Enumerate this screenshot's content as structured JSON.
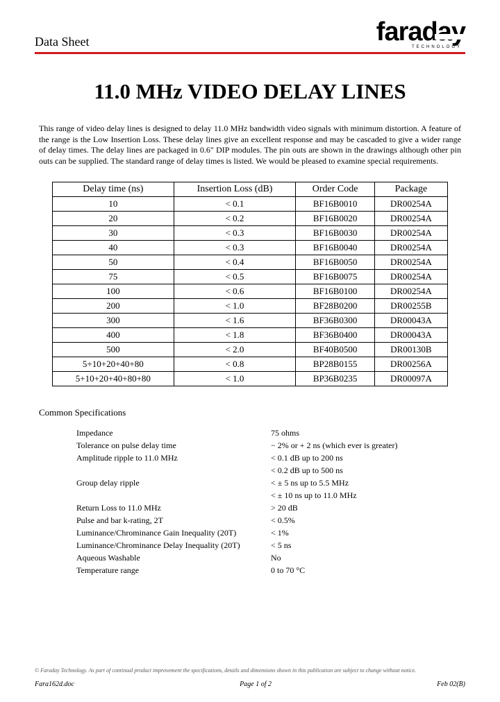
{
  "header": {
    "label": "Data Sheet",
    "logo_main": "faraday",
    "logo_sub": "TECHNOLOGY"
  },
  "title": "11.0 MHz VIDEO DELAY LINES",
  "intro": "This range of video delay lines is designed to delay 11.0 MHz bandwidth video signals with minimum distortion. A feature of the range is the Low Insertion Loss. These delay lines give an excellent response and may be cascaded to give a wider range of delay times. The delay lines are packaged in 0.6\" DIP modules. The pin outs are shown in the drawings although other pin outs can be supplied. The standard range of delay times is listed. We would be pleased to examine special requirements.",
  "table": {
    "headers": [
      "Delay time (ns)",
      "Insertion Loss (dB)",
      "Order Code",
      "Package"
    ],
    "rows": [
      [
        "10",
        "< 0.1",
        "BF16B0010",
        "DR00254A"
      ],
      [
        "20",
        "< 0.2",
        "BF16B0020",
        "DR00254A"
      ],
      [
        "30",
        "< 0.3",
        "BF16B0030",
        "DR00254A"
      ],
      [
        "40",
        "< 0.3",
        "BF16B0040",
        "DR00254A"
      ],
      [
        "50",
        "< 0.4",
        "BF16B0050",
        "DR00254A"
      ],
      [
        "75",
        "< 0.5",
        "BF16B0075",
        "DR00254A"
      ],
      [
        "100",
        "< 0.6",
        "BF16B0100",
        "DR00254A"
      ],
      [
        "200",
        "< 1.0",
        "BF28B0200",
        "DR00255B"
      ],
      [
        "300",
        "< 1.6",
        "BF36B0300",
        "DR00043A"
      ],
      [
        "400",
        "< 1.8",
        "BF36B0400",
        "DR00043A"
      ],
      [
        "500",
        "< 2.0",
        "BF40B0500",
        "DR00130B"
      ],
      [
        "5+10+20+40+80",
        "< 0.8",
        "BP28B0155",
        "DR00256A"
      ],
      [
        "5+10+20+40+80+80",
        "< 1.0",
        "BP36B0235",
        "DR00097A"
      ]
    ]
  },
  "specs_title": "Common Specifications",
  "specs": [
    {
      "label": "Impedance",
      "value": "75 ohms"
    },
    {
      "label": "Tolerance on pulse delay time",
      "value": "− 2% or + 2 ns (which ever is greater)"
    },
    {
      "label": "Amplitude ripple to 11.0 MHz",
      "value": "< 0.1 dB up to 200 ns"
    },
    {
      "label": "",
      "value": "< 0.2 dB up to 500 ns"
    },
    {
      "label": "Group delay ripple",
      "value": "< ± 5 ns up to 5.5 MHz"
    },
    {
      "label": "",
      "value": "< ± 10 ns up to 11.0 MHz"
    },
    {
      "label": "Return Loss to 11.0 MHz",
      "value": "> 20 dB"
    },
    {
      "label": "Pulse and bar k-rating, 2T",
      "value": "< 0.5%"
    },
    {
      "label": "Luminance/Chrominance Gain Inequality (20T)",
      "value": "< 1%"
    },
    {
      "label": "Luminance/Chrominance Delay Inequality (20T)",
      "value": "< 5 ns"
    },
    {
      "label": "Aqueous Washable",
      "value": "No"
    },
    {
      "label": "Temperature range",
      "value": "0 to 70 °C"
    }
  ],
  "footer": {
    "disclaimer": "© Faraday Technology. As part of continual product improvement the specifications, details and dimensions shown in this publication are subject to change without notice.",
    "left": "Fara162d.doc",
    "center": "Page 1 of 2",
    "right": "Feb 02(B)"
  }
}
